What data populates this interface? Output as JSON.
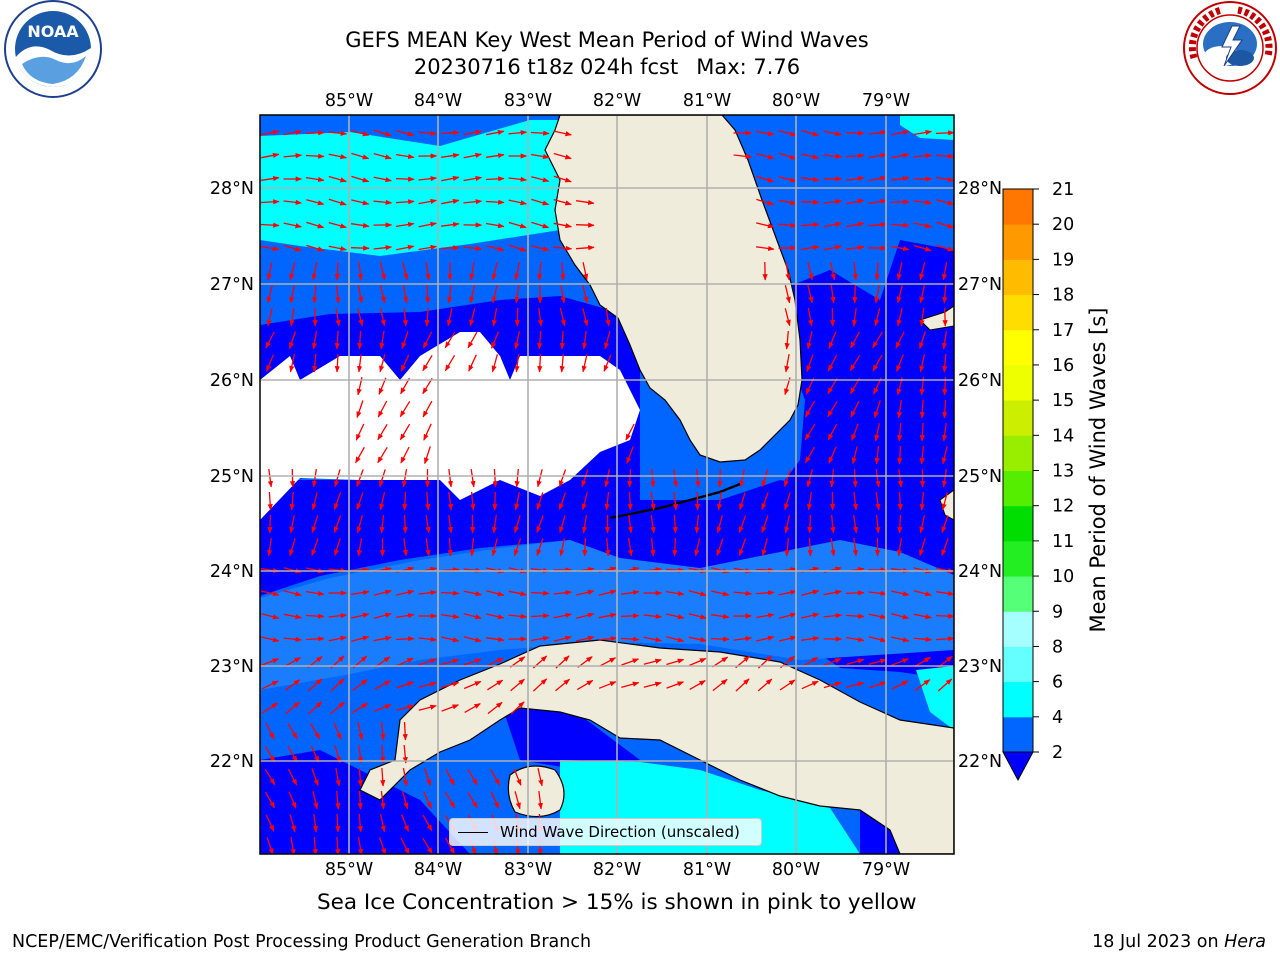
{
  "header": {
    "title_line1": "GEFS MEAN Key West Mean Period of Wind Waves",
    "title_date": "20230716 t18z 024h fcst",
    "title_max": "Max: 7.76"
  },
  "logos": {
    "noaa_text": "NOAA",
    "noaa_ring_text": "NATIONAL OCEANIC AND ATMOSPHERIC ADMINISTRATION · U.S. DEPARTMENT OF COMMERCE",
    "nws_ring_text": "NATIONAL WEATHER SERVICE"
  },
  "map": {
    "top_lon_labels": [
      "85°W",
      "84°W",
      "83°W",
      "82°W",
      "81°W",
      "80°W",
      "79°W"
    ],
    "bottom_lon_labels": [
      "85°W",
      "84°W",
      "83°W",
      "82°W",
      "81°W",
      "80°W",
      "79°W"
    ],
    "left_lat_labels": [
      "28°N",
      "27°N",
      "26°N",
      "25°N",
      "24°N",
      "23°N",
      "22°N"
    ],
    "right_lat_labels": [
      "28°N",
      "27°N",
      "26°N",
      "25°N",
      "24°N",
      "23°N",
      "22°N"
    ],
    "legend_label": "Wind Wave Direction (unscaled)",
    "colors": {
      "land": "#efecdc",
      "blue_2_4": "#0066ff",
      "cyan_4_6": "#00ffff",
      "dark_below_2": "#0000ff",
      "arrow": "#ff0000",
      "grid": "#b0b0b0"
    }
  },
  "colorbar": {
    "label": "Mean Period of Wind Waves [s]",
    "ticks": [
      "2",
      "4",
      "6",
      "8",
      "9",
      "10",
      "11",
      "12",
      "13",
      "14",
      "15",
      "16",
      "17",
      "18",
      "19",
      "20",
      "21"
    ],
    "colors": [
      "#0066ff",
      "#00ffff",
      "#66ffff",
      "#a6ffff",
      "#55ff77",
      "#22ee22",
      "#00dd00",
      "#55ee00",
      "#99ee00",
      "#ccee00",
      "#eeff00",
      "#ffff00",
      "#ffdd00",
      "#ffbb00",
      "#ff9900",
      "#ff7700",
      "#ff4400",
      "#ff1100"
    ],
    "under_color": "#0000ff"
  },
  "note": "Sea Ice Concentration > 15% is shown in pink to yellow",
  "footer": {
    "left": "NCEP/EMC/Verification Post Processing Product Generation Branch",
    "date": "18 Jul 2023 on",
    "machine": "Hera"
  }
}
